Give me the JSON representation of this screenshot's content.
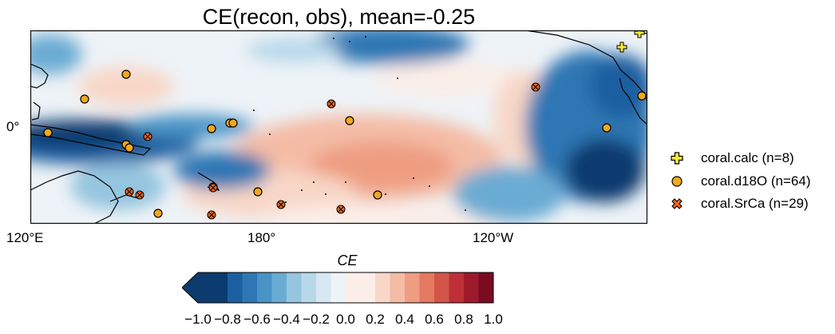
{
  "title": "CE(recon, obs), mean=-0.25",
  "axes": {
    "x_ticks": [
      "120°E",
      "180°",
      "120°W"
    ],
    "y_ticks": [
      "0°"
    ]
  },
  "legend": [
    {
      "label": "coral.calc (n=8)",
      "marker": "plus",
      "color": "#f5e63b"
    },
    {
      "label": "coral.d18O (n=64)",
      "marker": "circle",
      "color": "#f2a81b"
    },
    {
      "label": "coral.SrCa (n=29)",
      "marker": "x",
      "color": "#e8641e"
    }
  ],
  "colorbar": {
    "label": "CE",
    "ticks": [
      "−1.0",
      "−0.8",
      "−0.6",
      "−0.4",
      "−0.2",
      "0.0",
      "0.2",
      "0.4",
      "0.6",
      "0.8",
      "1.0"
    ],
    "colors": [
      "#0b3b6f",
      "#1b5fa0",
      "#2f77b4",
      "#4a93c6",
      "#6aabd3",
      "#95c5df",
      "#b8d8ea",
      "#d7e8f2",
      "#eef3f7",
      "#fbeee8",
      "#f8d7c7",
      "#f4bca5",
      "#ee9d81",
      "#e37a61",
      "#d35547",
      "#be3036",
      "#9e1a2b",
      "#7a0c22"
    ]
  }
}
